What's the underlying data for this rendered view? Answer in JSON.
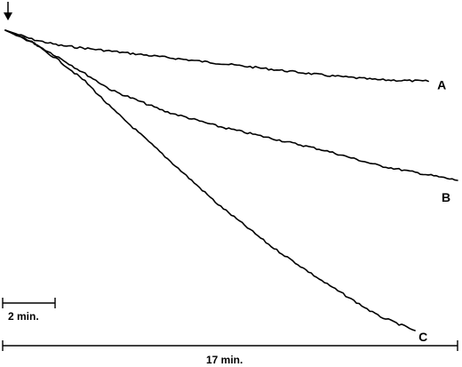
{
  "chart_data": {
    "type": "line",
    "title": "",
    "xlabel": "",
    "ylabel": "",
    "x_unit": "min",
    "xlim": [
      0,
      17
    ],
    "ylim": [
      -1,
      0
    ],
    "start_marker": "down-arrow-icon",
    "series": [
      {
        "name": "A",
        "x": [
          0,
          1,
          2,
          4,
          6,
          8,
          10,
          12,
          14,
          15.9
        ],
        "y": [
          0,
          -0.03,
          -0.05,
          -0.07,
          -0.09,
          -0.11,
          -0.13,
          -0.15,
          -0.165,
          -0.17
        ]
      },
      {
        "name": "B",
        "x": [
          0,
          1,
          2,
          4,
          6,
          8,
          10,
          12,
          14,
          17
        ],
        "y": [
          0,
          -0.04,
          -0.09,
          -0.2,
          -0.27,
          -0.32,
          -0.36,
          -0.4,
          -0.45,
          -0.5
        ]
      },
      {
        "name": "C",
        "x": [
          0,
          1,
          2,
          3,
          4,
          6,
          8,
          10,
          12,
          14,
          15.4
        ],
        "y": [
          0,
          -0.04,
          -0.1,
          -0.17,
          -0.26,
          -0.42,
          -0.58,
          -0.72,
          -0.84,
          -0.95,
          -1.0
        ]
      }
    ],
    "scale_bars": [
      {
        "label": "2 min.",
        "minutes": 2
      },
      {
        "label": "17 min.",
        "minutes": 17
      }
    ]
  }
}
